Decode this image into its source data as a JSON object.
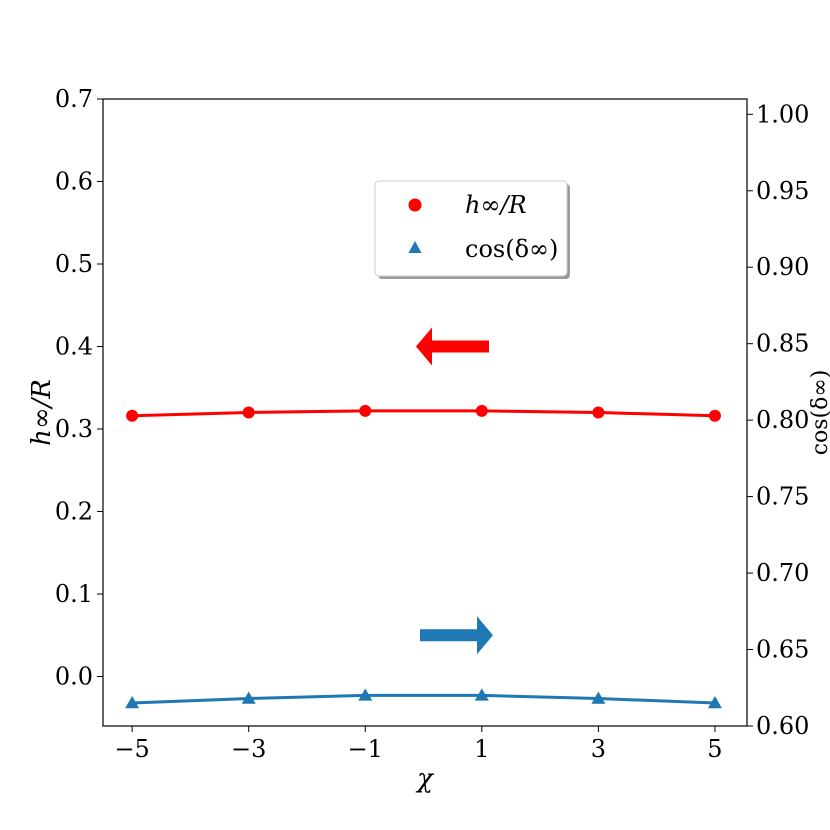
{
  "chart_data": {
    "type": "line",
    "x": [
      -5,
      -3,
      -1,
      1,
      3,
      5
    ],
    "x_ticks": [
      -5,
      -3,
      -1,
      1,
      3,
      5
    ],
    "x_tick_labels": [
      "−5",
      "−3",
      "−1",
      "1",
      "3",
      "5"
    ],
    "xlabel": "χ",
    "left_axis": {
      "ylabel": "h∞/R",
      "ylim": [
        -0.06,
        0.7
      ],
      "ticks": [
        0.0,
        0.1,
        0.2,
        0.3,
        0.4,
        0.5,
        0.6,
        0.7
      ],
      "tick_labels": [
        "0.0",
        "0.1",
        "0.2",
        "0.3",
        "0.4",
        "0.5",
        "0.6",
        "0.7"
      ]
    },
    "right_axis": {
      "ylabel": "cos(δ∞)",
      "ylim": [
        0.6,
        1.01
      ],
      "ticks": [
        0.6,
        0.65,
        0.7,
        0.75,
        0.8,
        0.85,
        0.9,
        0.95,
        1.0
      ],
      "tick_labels": [
        "0.60",
        "0.65",
        "0.70",
        "0.75",
        "0.80",
        "0.85",
        "0.90",
        "0.95",
        "1.00"
      ]
    },
    "series": [
      {
        "name": "h∞/R",
        "axis": "left",
        "marker": "circle",
        "color": "#ff0000",
        "values": [
          0.316,
          0.32,
          0.322,
          0.322,
          0.32,
          0.316
        ]
      },
      {
        "name": "cos(δ∞)",
        "axis": "right",
        "marker": "triangle",
        "color": "#1f77b4",
        "values": [
          0.615,
          0.618,
          0.62,
          0.62,
          0.618,
          0.615
        ]
      }
    ],
    "legend": {
      "position": "upper-center",
      "entries": [
        "h∞/R",
        "cos(δ∞)"
      ]
    },
    "annotations": [
      {
        "kind": "arrow",
        "direction": "left",
        "color": "#ff0000",
        "meaning": "left axis"
      },
      {
        "kind": "arrow",
        "direction": "right",
        "color": "#1f77b4",
        "meaning": "right axis"
      }
    ],
    "grid": false
  }
}
